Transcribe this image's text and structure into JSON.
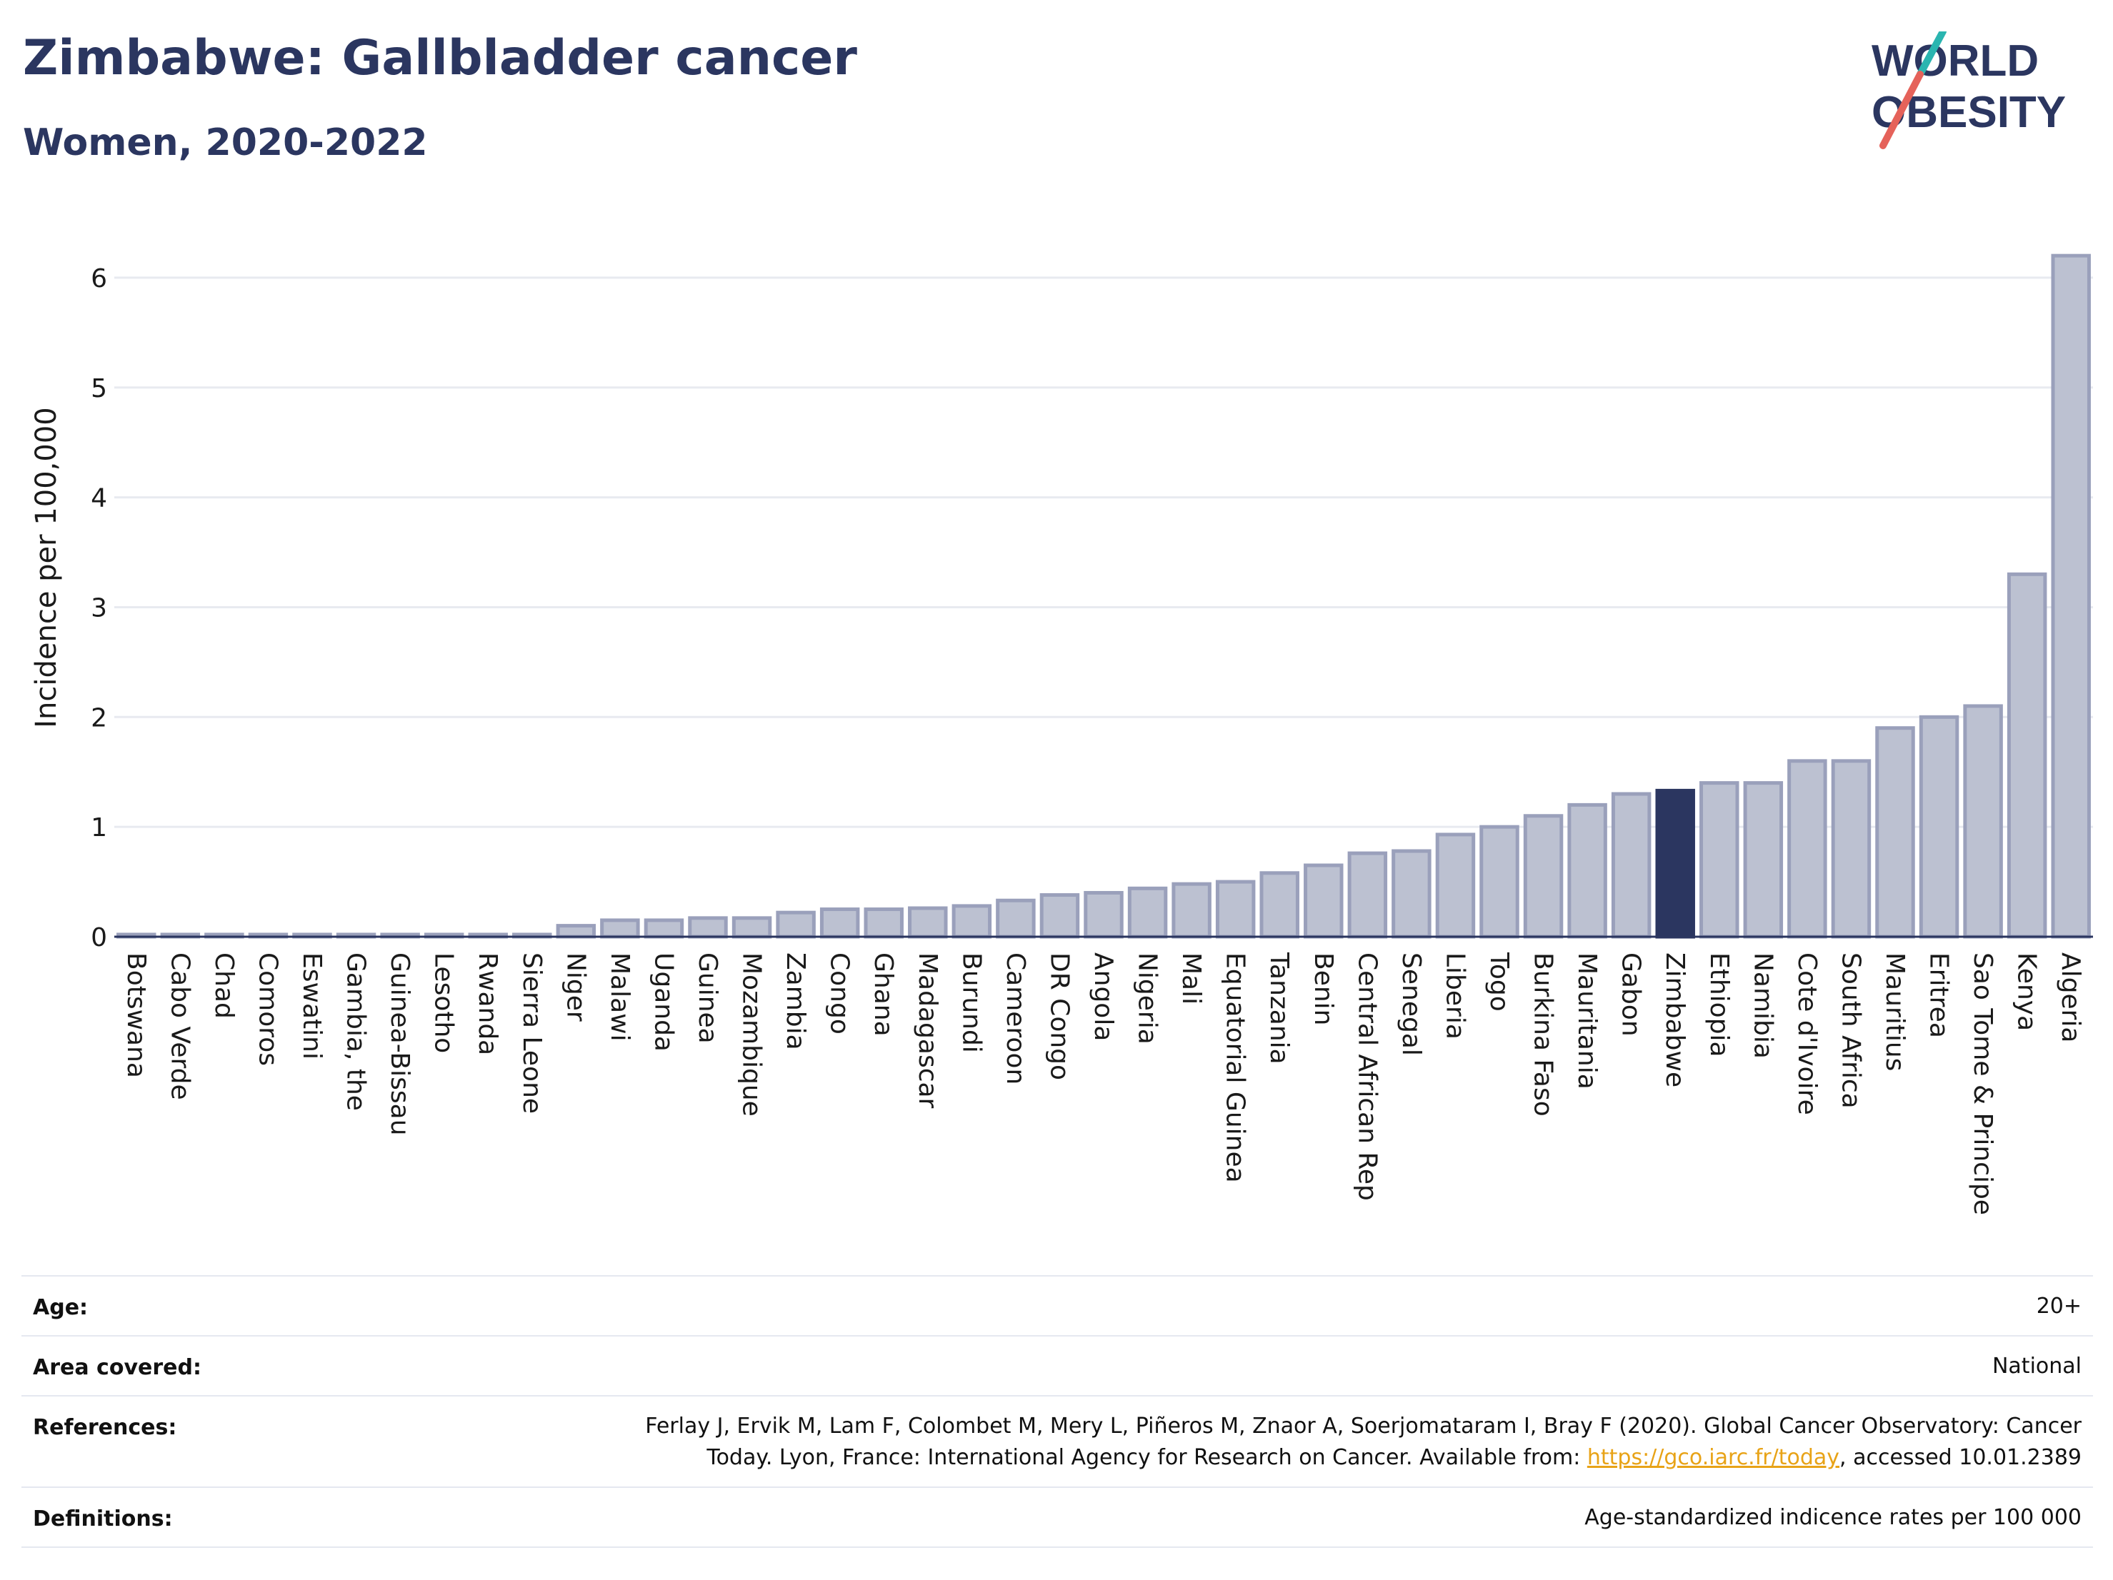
{
  "title": "Zimbabwe: Gallbladder cancer",
  "subtitle": "Women, 2020-2022",
  "logo": {
    "line1": "WORLD",
    "line2": "OBESITY"
  },
  "colors": {
    "bar": "#bcc1d1",
    "bar_edge": "#9aa0bb",
    "highlight": "#2b3660",
    "text": "#2b3660",
    "link": "#e8a317",
    "logo_teal": "#2ab5b0",
    "logo_red": "#e5625a"
  },
  "chart_data": {
    "type": "bar",
    "ylabel": "Incidence per 100,000",
    "ylim": [
      0,
      6.5
    ],
    "yticks": [
      0,
      1,
      2,
      3,
      4,
      5,
      6
    ],
    "grid": true,
    "highlight": "Zimbabwe",
    "categories": [
      "Botswana",
      "Cabo Verde",
      "Chad",
      "Comoros",
      "Eswatini",
      "Gambia, the",
      "Guinea-Bissau",
      "Lesotho",
      "Rwanda",
      "Sierra Leone",
      "Niger",
      "Malawi",
      "Uganda",
      "Guinea",
      "Mozambique",
      "Zambia",
      "Congo",
      "Ghana",
      "Madagascar",
      "Burundi",
      "Cameroon",
      "DR Congo",
      "Angola",
      "Nigeria",
      "Mali",
      "Equatorial Guinea",
      "Tanzania",
      "Benin",
      "Central African Rep",
      "Senegal",
      "Liberia",
      "Togo",
      "Burkina Faso",
      "Mauritania",
      "Gabon",
      "Zimbabwe",
      "Ethiopia",
      "Namibia",
      "Cote d'Ivoire",
      "South Africa",
      "Mauritius",
      "Eritrea",
      "Sao Tome & Principe",
      "Kenya",
      "Algeria"
    ],
    "values": [
      0.02,
      0.02,
      0.02,
      0.02,
      0.02,
      0.02,
      0.02,
      0.02,
      0.02,
      0.02,
      0.1,
      0.15,
      0.15,
      0.17,
      0.17,
      0.22,
      0.25,
      0.25,
      0.26,
      0.28,
      0.33,
      0.38,
      0.4,
      0.44,
      0.48,
      0.5,
      0.58,
      0.65,
      0.76,
      0.78,
      0.93,
      1.0,
      1.1,
      1.2,
      1.3,
      1.33,
      1.4,
      1.4,
      1.6,
      1.6,
      1.9,
      2.0,
      2.1,
      3.3,
      6.2
    ]
  },
  "meta": {
    "age_label": "Age:",
    "age_value": "20+",
    "area_label": "Area covered:",
    "area_value": "National",
    "refs_label": "References:",
    "refs_line1": "Ferlay J, Ervik M, Lam F, Colombet M, Mery L, Piñeros M, Znaor A, Soerjomataram I, Bray F (2020). Global Cancer Observatory: Cancer",
    "refs_line2_pre": "Today. Lyon, France: International Agency for Research on Cancer. Available from: ",
    "refs_link": "https://gco.iarc.fr/today",
    "refs_line2_post": ", accessed 10.01.2389",
    "defs_label": "Definitions:",
    "defs_value": "Age-standardized indicence rates per 100 000"
  }
}
